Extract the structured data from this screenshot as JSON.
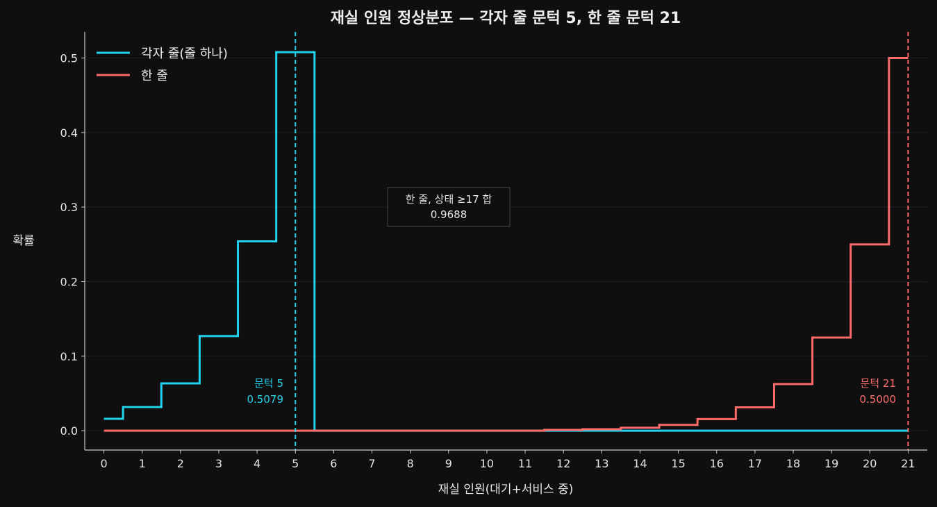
{
  "chart_data": {
    "type": "line",
    "step": "mid",
    "title": "재실 인원 정상분포 — 각자 줄 문턱 5, 한 줄 문턱 21",
    "xlabel": "재실 인원(대기+서비스 중)",
    "ylabel": "확률",
    "xlim": [
      -0.5,
      21.5
    ],
    "ylim": [
      -0.026,
      0.535
    ],
    "x_ticks": [
      0,
      1,
      2,
      3,
      4,
      5,
      6,
      7,
      8,
      9,
      10,
      11,
      12,
      13,
      14,
      15,
      16,
      17,
      18,
      19,
      20,
      21
    ],
    "x_tick_labels": [
      "0",
      "1",
      "2",
      "3",
      "4",
      "5",
      "6",
      "7",
      "8",
      "9",
      "10",
      "11",
      "12",
      "13",
      "14",
      "15",
      "16",
      "17",
      "18",
      "19",
      "20",
      "21"
    ],
    "y_ticks": [
      0.0,
      0.1,
      0.2,
      0.3,
      0.4,
      0.5
    ],
    "y_tick_labels": [
      "0.0",
      "0.1",
      "0.2",
      "0.3",
      "0.4",
      "0.5"
    ],
    "grid": "horizontal",
    "legend_position": "top-left",
    "colors": {
      "background": "#0f0f0f",
      "axis": "#cccccc",
      "grid": "#1e1e28",
      "box_border": "#33333d"
    },
    "series": [
      {
        "name": "각자 줄(줄 하나)",
        "color": "#22d3ee",
        "x": [
          0,
          1,
          2,
          3,
          4,
          5,
          6,
          7,
          8,
          9,
          10,
          11,
          12,
          13,
          14,
          15,
          16,
          17,
          18,
          19,
          20,
          21
        ],
        "values": [
          0.0159,
          0.0317,
          0.0635,
          0.127,
          0.254,
          0.5079,
          0,
          0,
          0,
          0,
          0,
          0,
          0,
          0,
          0,
          0,
          0,
          0,
          0,
          0,
          0,
          0
        ]
      },
      {
        "name": "한 줄",
        "color": "#ff6b6b",
        "x": [
          0,
          1,
          2,
          3,
          4,
          5,
          6,
          7,
          8,
          9,
          10,
          11,
          12,
          13,
          14,
          15,
          16,
          17,
          18,
          19,
          20,
          21
        ],
        "values": [
          0,
          0,
          0,
          0,
          0,
          0,
          0,
          0,
          0,
          0,
          0,
          0,
          0.001,
          0.002,
          0.0039,
          0.0078,
          0.0156,
          0.0313,
          0.0625,
          0.125,
          0.25,
          0.5
        ]
      }
    ],
    "thresholds": [
      {
        "x": 5,
        "color": "#22d3ee",
        "label": "문턱 5",
        "value": "0.5079"
      },
      {
        "x": 21,
        "color": "#ff6b6b",
        "label": "문턱 21",
        "value": "0.5000"
      }
    ],
    "annotation_box": {
      "line1": "한 줄, 상태 ≥17 합",
      "line2": "0.9688"
    }
  }
}
